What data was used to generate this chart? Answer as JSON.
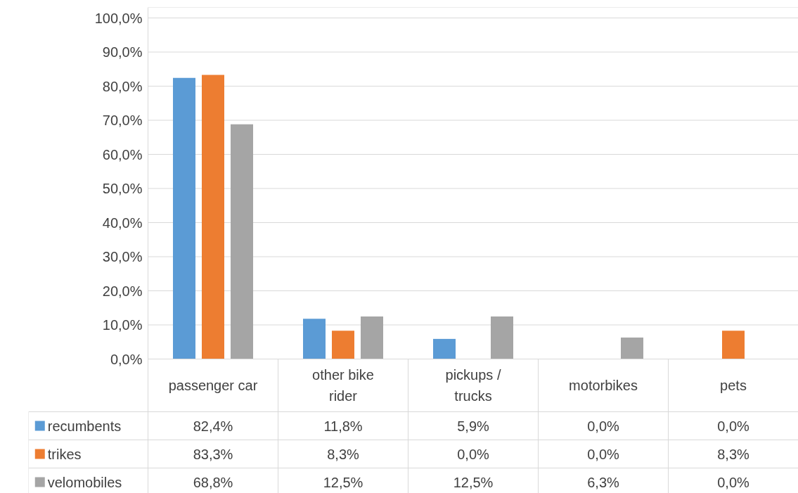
{
  "chart_data": {
    "type": "bar",
    "categories": [
      "passenger car",
      "other bike rider",
      "pickups / trucks",
      "motorbikes",
      "pets"
    ],
    "series": [
      {
        "name": "recumbents",
        "color": "#5b9bd5",
        "values": [
          82.4,
          11.8,
          5.9,
          0.0,
          0.0
        ],
        "value_labels": [
          "82,4%",
          "11,8%",
          "5,9%",
          "0,0%",
          "0,0%"
        ]
      },
      {
        "name": "trikes",
        "color": "#ed7d31",
        "values": [
          83.3,
          8.3,
          0.0,
          0.0,
          8.3
        ],
        "value_labels": [
          "83,3%",
          "8,3%",
          "0,0%",
          "0,0%",
          "8,3%"
        ]
      },
      {
        "name": "velomobiles",
        "color": "#a5a5a5",
        "values": [
          68.8,
          12.5,
          12.5,
          6.3,
          0.0
        ],
        "value_labels": [
          "68,8%",
          "12,5%",
          "12,5%",
          "6,3%",
          "0,0%"
        ]
      }
    ],
    "ylim": [
      0,
      100
    ],
    "yticks": [
      {
        "value": 0,
        "label": "0,0%"
      },
      {
        "value": 10,
        "label": "10,0%"
      },
      {
        "value": 20,
        "label": "20,0%"
      },
      {
        "value": 30,
        "label": "30,0%"
      },
      {
        "value": 40,
        "label": "40,0%"
      },
      {
        "value": 50,
        "label": "50,0%"
      },
      {
        "value": 60,
        "label": "60,0%"
      },
      {
        "value": 70,
        "label": "70,0%"
      },
      {
        "value": 80,
        "label": "80,0%"
      },
      {
        "value": 90,
        "label": "90,0%"
      },
      {
        "value": 100,
        "label": "100,0%"
      }
    ],
    "grid": "y",
    "legend": "bottom left"
  }
}
